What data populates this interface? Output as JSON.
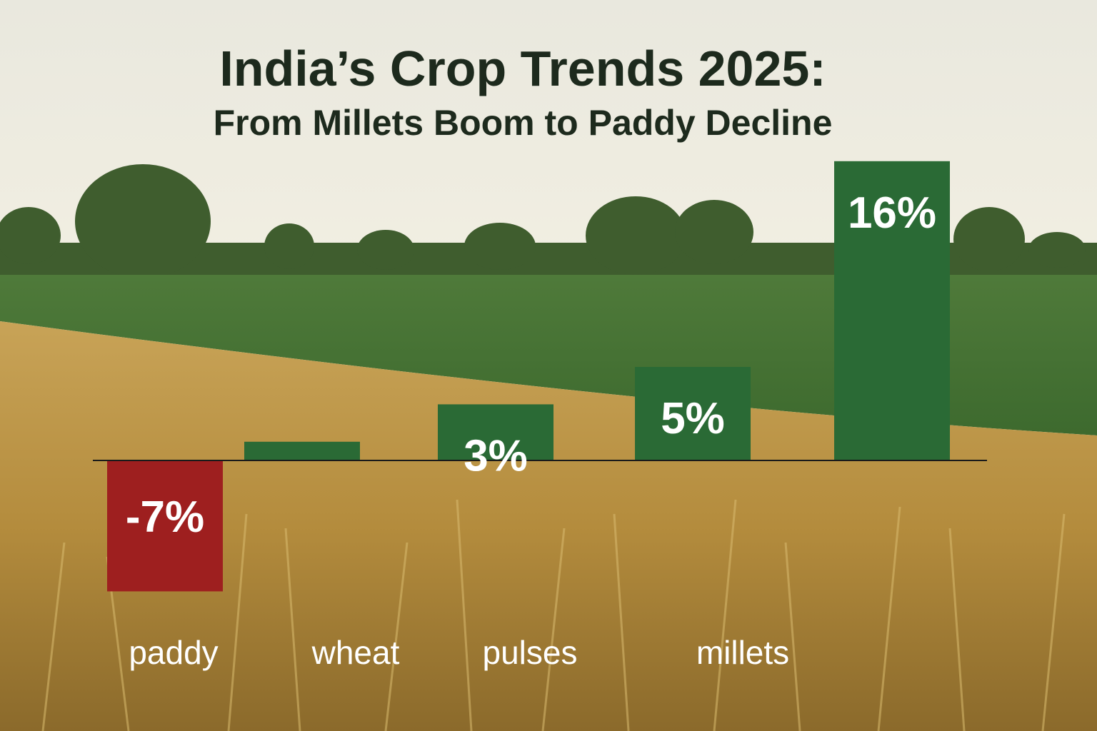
{
  "chart_data": {
    "type": "bar",
    "title": "India’s Crop Trends 2025:",
    "subtitle": "From Millets Boom to Paddy Decline",
    "categories": [
      "paddy",
      "wheat",
      "pulses",
      "millets",
      ""
    ],
    "values": [
      -7,
      1,
      3,
      5,
      16
    ],
    "value_labels": [
      "-7%",
      "",
      "3%",
      "5%",
      "16%"
    ],
    "ylim": [
      -7,
      16
    ],
    "grid": false,
    "legend": "none",
    "colors": {
      "positive": "#2a6a35",
      "negative": "#9e1f1f",
      "baseline": "#1a1a1a",
      "label_text": "#ffffff",
      "title_text": "#1d2a1d"
    }
  }
}
